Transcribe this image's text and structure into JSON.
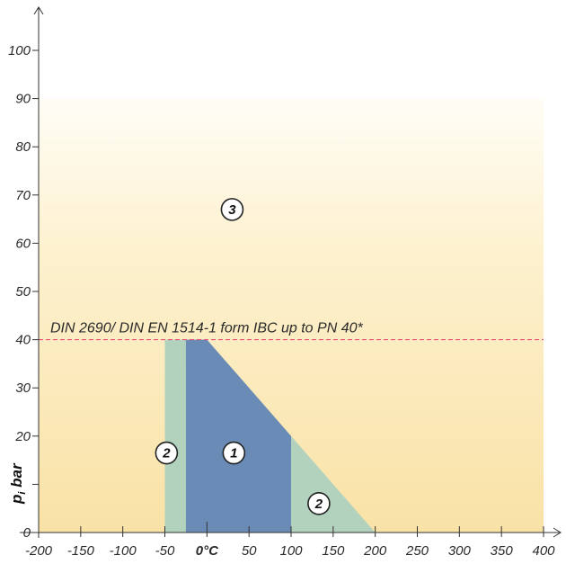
{
  "chart_data": {
    "type": "area",
    "xlim": [
      -200,
      400
    ],
    "ylim": [
      0,
      100
    ],
    "x_ticks": [
      -200,
      -150,
      -100,
      -50,
      0,
      50,
      100,
      150,
      200,
      250,
      300,
      350,
      400
    ],
    "x_tick_labels": [
      "-200",
      "-150",
      "-100",
      "-50",
      "0°C",
      "50",
      "100",
      "150",
      "200",
      "250",
      "300",
      "350",
      "400"
    ],
    "y_ticks": [
      0,
      10,
      20,
      30,
      40,
      50,
      60,
      70,
      80,
      90,
      100
    ],
    "y_tick_labels": [
      "0",
      "",
      "20",
      "30",
      "40",
      "50",
      "60",
      "70",
      "80",
      "90",
      "100"
    ],
    "ylabel": "p_i bar",
    "xlabel": "",
    "reference_line": {
      "y": 40,
      "label": "DIN 2690/ DIN EN 1514-1 form IBC up to PN 40*",
      "color": "#e0407a"
    },
    "zones": [
      {
        "label": "3",
        "color": "#f9e4ad",
        "polygon": [
          [
            -200,
            0
          ],
          [
            400,
            0
          ],
          [
            400,
            90
          ],
          [
            -200,
            90
          ]
        ],
        "label_at": [
          30,
          67
        ]
      },
      {
        "label": "2",
        "color": "#b2d2bd",
        "polygon": [
          [
            -50,
            0
          ],
          [
            -25,
            0
          ],
          [
            -25,
            40
          ],
          [
            -50,
            40
          ]
        ],
        "label_at": [
          -48,
          16.5
        ]
      },
      {
        "label": "2",
        "color": "#b2d2bd",
        "polygon": [
          [
            100,
            0
          ],
          [
            200,
            0
          ],
          [
            100,
            20
          ]
        ],
        "label_at": [
          133,
          6
        ]
      },
      {
        "label": "1",
        "color": "#6a8bb6",
        "polygon": [
          [
            -25,
            0
          ],
          [
            100,
            0
          ],
          [
            100,
            20
          ],
          [
            0,
            40
          ],
          [
            -25,
            40
          ]
        ],
        "label_at": [
          32,
          16.5
        ]
      }
    ]
  }
}
